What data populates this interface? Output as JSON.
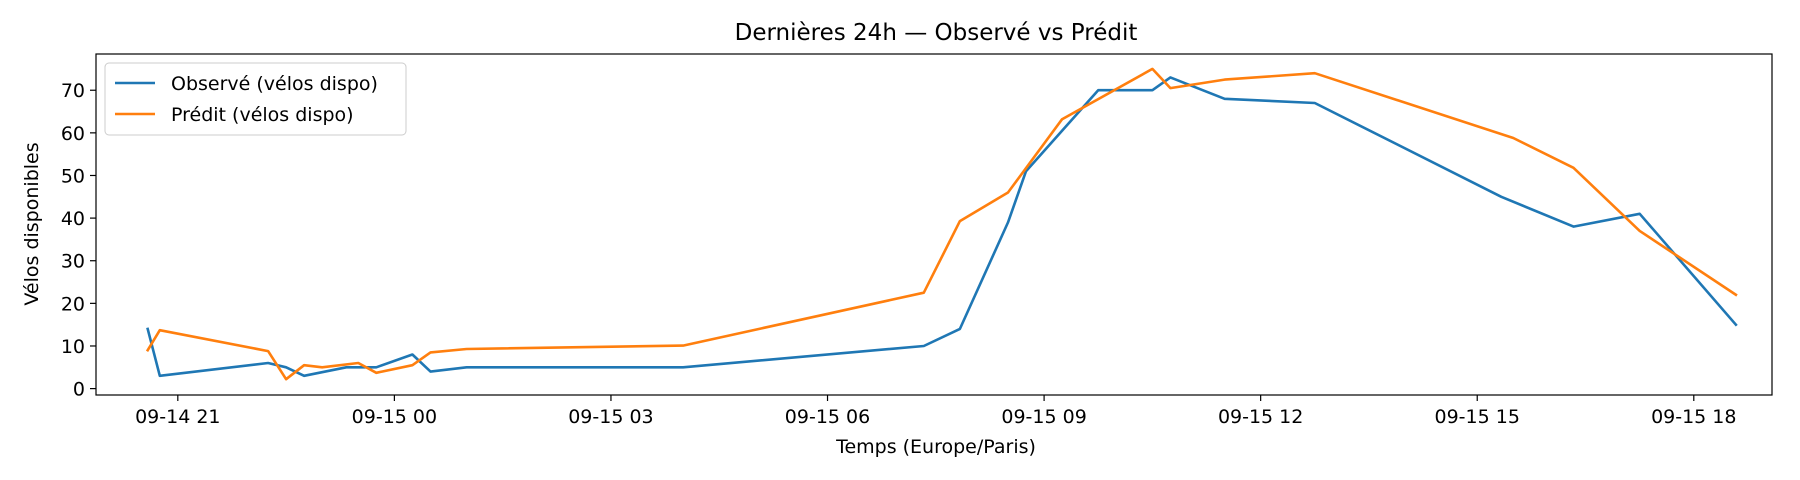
{
  "chart_data": {
    "type": "line",
    "title": "Dernières 24h — Observé vs Prédit",
    "xlabel": "Temps (Europe/Paris)",
    "ylabel": "Vélos disponibles",
    "x_tick_labels": [
      "09-14 21",
      "09-15 00",
      "09-15 03",
      "09-15 06",
      "09-15 09",
      "09-15 12",
      "09-15 15",
      "09-15 18"
    ],
    "x_ticks": [
      "2024-09-14 21:00",
      "2024-09-15 00:00",
      "2024-09-15 03:00",
      "2024-09-15 06:00",
      "2024-09-15 09:00",
      "2024-09-15 12:00",
      "2024-09-15 15:00",
      "2024-09-15 18:00"
    ],
    "xlim": [
      "2024-09-14 19:52",
      "2024-09-15 19:05"
    ],
    "y_ticks": [
      0,
      10,
      20,
      30,
      40,
      50,
      60,
      70
    ],
    "ylim": [
      -1.5,
      78.5
    ],
    "grid": false,
    "legend_position": "upper-left",
    "series": [
      {
        "name": "Observé (vélos dispo)",
        "color": "#1f77b4",
        "points": [
          [
            "2024-09-14 20:35",
            14
          ],
          [
            "2024-09-14 20:45",
            3
          ],
          [
            "2024-09-14 22:15",
            6
          ],
          [
            "2024-09-14 22:30",
            5
          ],
          [
            "2024-09-14 22:45",
            3
          ],
          [
            "2024-09-14 23:20",
            5
          ],
          [
            "2024-09-14 23:45",
            5
          ],
          [
            "2024-09-15 00:15",
            8
          ],
          [
            "2024-09-15 00:30",
            4
          ],
          [
            "2024-09-15 01:00",
            5
          ],
          [
            "2024-09-15 04:00",
            5
          ],
          [
            "2024-09-15 07:20",
            10
          ],
          [
            "2024-09-15 07:50",
            14
          ],
          [
            "2024-09-15 08:30",
            39
          ],
          [
            "2024-09-15 08:45",
            51
          ],
          [
            "2024-09-15 09:45",
            70
          ],
          [
            "2024-09-15 10:30",
            70
          ],
          [
            "2024-09-15 10:45",
            73
          ],
          [
            "2024-09-15 11:30",
            68
          ],
          [
            "2024-09-15 12:45",
            67
          ],
          [
            "2024-09-15 15:20",
            45
          ],
          [
            "2024-09-15 16:20",
            38
          ],
          [
            "2024-09-15 17:15",
            41
          ],
          [
            "2024-09-15 18:35",
            15
          ]
        ]
      },
      {
        "name": "Prédit (vélos dispo)",
        "color": "#ff7f0e",
        "points": [
          [
            "2024-09-14 20:35",
            9
          ],
          [
            "2024-09-14 20:45",
            13.7
          ],
          [
            "2024-09-14 22:15",
            8.8
          ],
          [
            "2024-09-14 22:30",
            2.2
          ],
          [
            "2024-09-14 22:45",
            5.5
          ],
          [
            "2024-09-14 23:00",
            5
          ],
          [
            "2024-09-14 23:30",
            6
          ],
          [
            "2024-09-14 23:45",
            3.7
          ],
          [
            "2024-09-15 00:15",
            5.5
          ],
          [
            "2024-09-15 00:30",
            8.5
          ],
          [
            "2024-09-15 01:00",
            9.3
          ],
          [
            "2024-09-15 04:00",
            10.1
          ],
          [
            "2024-09-15 07:20",
            22.5
          ],
          [
            "2024-09-15 07:50",
            39.3
          ],
          [
            "2024-09-15 08:30",
            46
          ],
          [
            "2024-09-15 09:15",
            63.2
          ],
          [
            "2024-09-15 10:30",
            75
          ],
          [
            "2024-09-15 10:45",
            70.5
          ],
          [
            "2024-09-15 11:30",
            72.5
          ],
          [
            "2024-09-15 12:45",
            74
          ],
          [
            "2024-09-15 15:30",
            58.8
          ],
          [
            "2024-09-15 16:20",
            51.8
          ],
          [
            "2024-09-15 17:15",
            37
          ],
          [
            "2024-09-15 18:35",
            22
          ]
        ]
      }
    ]
  }
}
